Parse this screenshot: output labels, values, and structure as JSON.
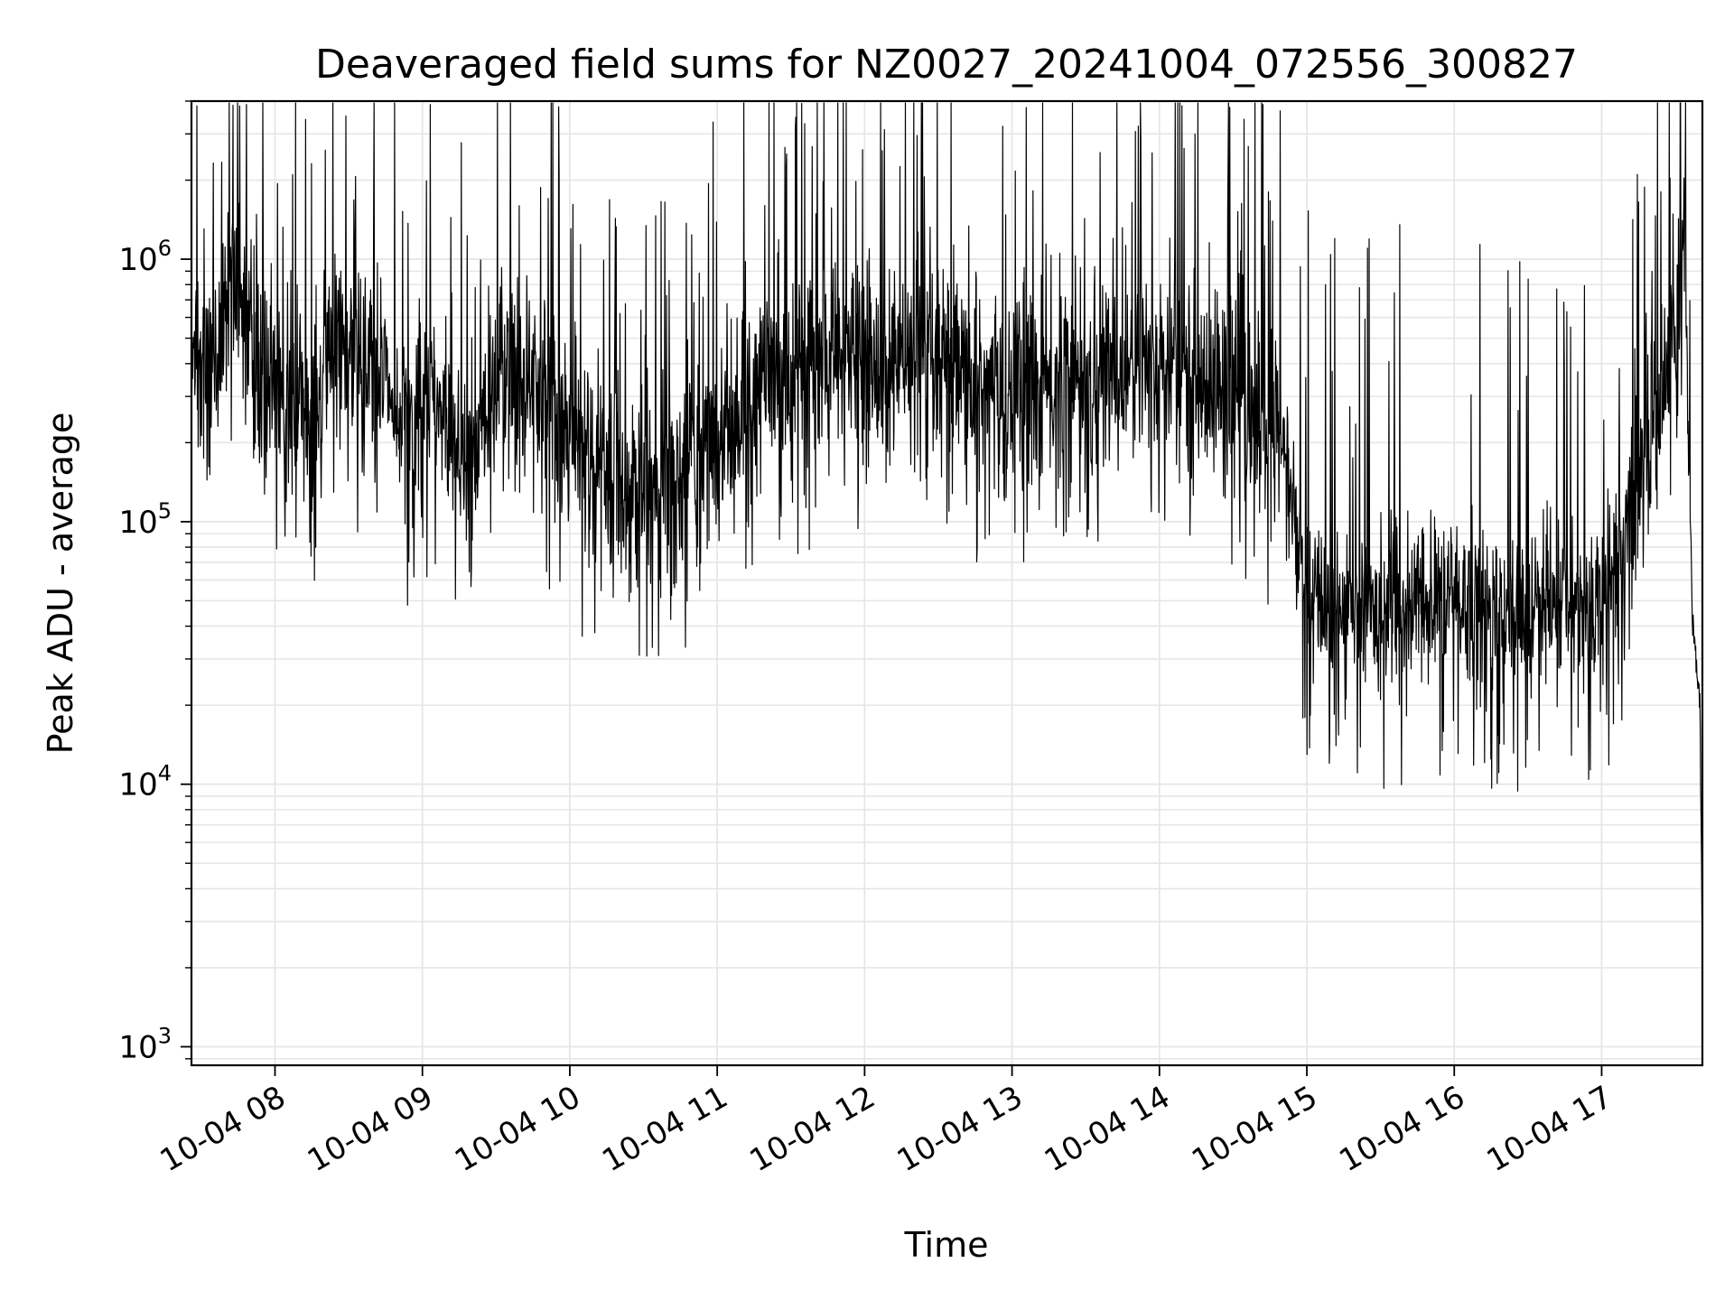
{
  "chart_data": {
    "type": "line",
    "title": "Deaveraged field sums for NZ0027_20241004_072556_300827",
    "xlabel": "Time",
    "ylabel": "Peak ADU - average",
    "y_scale": "log",
    "ylim": [
      850,
      4000000
    ],
    "xlim": [
      "2024-10-04 07:26",
      "2024-10-04 17:41"
    ],
    "grid": true,
    "colors": {
      "line": "#000000",
      "grid": "#e6e6e6",
      "axes": "#000000"
    },
    "x_ticks": [
      {
        "time": "2024-10-04 08:00",
        "label": "10-04 08"
      },
      {
        "time": "2024-10-04 09:00",
        "label": "10-04 09"
      },
      {
        "time": "2024-10-04 10:00",
        "label": "10-04 10"
      },
      {
        "time": "2024-10-04 11:00",
        "label": "10-04 11"
      },
      {
        "time": "2024-10-04 12:00",
        "label": "10-04 12"
      },
      {
        "time": "2024-10-04 13:00",
        "label": "10-04 13"
      },
      {
        "time": "2024-10-04 14:00",
        "label": "10-04 14"
      },
      {
        "time": "2024-10-04 15:00",
        "label": "10-04 15"
      },
      {
        "time": "2024-10-04 16:00",
        "label": "10-04 16"
      },
      {
        "time": "2024-10-04 17:00",
        "label": "10-04 17"
      }
    ],
    "y_ticks": [
      {
        "value": 1000,
        "base": "10",
        "exp": "3"
      },
      {
        "value": 10000,
        "base": "10",
        "exp": "4"
      },
      {
        "value": 100000,
        "base": "10",
        "exp": "5"
      },
      {
        "value": 1000000,
        "base": "10",
        "exp": "6"
      }
    ],
    "series": [
      {
        "x": [
          "2024-10-04 07:26",
          "2024-10-04 07:35",
          "2024-10-04 07:42",
          "2024-10-04 07:48",
          "2024-10-04 07:55",
          "2024-10-04 08:05",
          "2024-10-04 08:15",
          "2024-10-04 08:25",
          "2024-10-04 08:35",
          "2024-10-04 08:45",
          "2024-10-04 08:55",
          "2024-10-04 09:05",
          "2024-10-04 09:12",
          "2024-10-04 09:20",
          "2024-10-04 09:30",
          "2024-10-04 09:45",
          "2024-10-04 10:00",
          "2024-10-04 10:15",
          "2024-10-04 10:30",
          "2024-10-04 10:45",
          "2024-10-04 11:00",
          "2024-10-04 11:20",
          "2024-10-04 11:45",
          "2024-10-04 12:00",
          "2024-10-04 12:30",
          "2024-10-04 13:00",
          "2024-10-04 13:30",
          "2024-10-04 14:00",
          "2024-10-04 14:30",
          "2024-10-04 14:50",
          "2024-10-04 15:00",
          "2024-10-04 15:30",
          "2024-10-04 16:00",
          "2024-10-04 16:30",
          "2024-10-04 16:55",
          "2024-10-04 17:05",
          "2024-10-04 17:15",
          "2024-10-04 17:25",
          "2024-10-04 17:30",
          "2024-10-04 17:34",
          "2024-10-04 17:37",
          "2024-10-04 17:40",
          "2024-10-04 17:41"
        ],
        "y": [
          350000,
          400000,
          900000,
          600000,
          400000,
          300000,
          250000,
          500000,
          350000,
          400000,
          200000,
          300000,
          250000,
          150000,
          400000,
          350000,
          200000,
          150000,
          120000,
          150000,
          200000,
          350000,
          400000,
          400000,
          350000,
          300000,
          350000,
          400000,
          300000,
          200000,
          50000,
          45000,
          50000,
          45000,
          50000,
          60000,
          150000,
          300000,
          600000,
          900000,
          40000,
          20000,
          2500
        ]
      }
    ]
  }
}
